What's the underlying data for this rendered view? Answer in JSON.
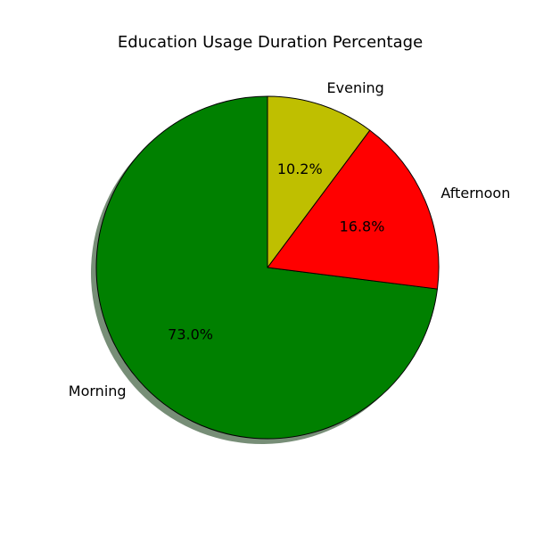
{
  "chart_data": {
    "type": "pie",
    "title": "Education Usage Duration Percentage",
    "start_angle_deg": 90,
    "direction": "counterclockwise",
    "shadow": true,
    "slices": [
      {
        "label": "Morning",
        "value": 73.0,
        "pct_text": "73.0%",
        "color": "#008000"
      },
      {
        "label": "Afternoon",
        "value": 16.8,
        "pct_text": "16.8%",
        "color": "#ff0000"
      },
      {
        "label": "Evening",
        "value": 10.2,
        "pct_text": "10.2%",
        "color": "#bfbf00"
      }
    ],
    "edge_color": "#000000",
    "shadow_color": "#5f7a5f"
  }
}
